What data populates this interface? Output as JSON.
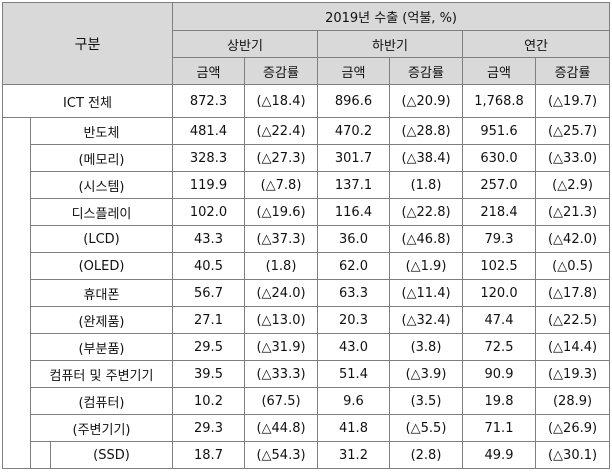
{
  "header": {
    "category": "구분",
    "main_title": "2019년 수출 (억불, %)",
    "periods": [
      "상반기",
      "하반기",
      "연간"
    ],
    "amount": "금액",
    "rate": "증감률"
  },
  "total": {
    "label": "ICT 전체",
    "h1_amt": "872.3",
    "h1_rate": "(△18.4)",
    "h2_amt": "896.6",
    "h2_rate": "(△20.9)",
    "yr_amt": "1,768.8",
    "yr_rate": "(△19.7)"
  },
  "rows": [
    {
      "label": "반도체",
      "h1_amt": "481.4",
      "h1_rate": "(△22.4)",
      "h2_amt": "470.2",
      "h2_rate": "(△28.8)",
      "yr_amt": "951.6",
      "yr_rate": "(△25.7)"
    },
    {
      "label": "(메모리)",
      "h1_amt": "328.3",
      "h1_rate": "(△27.3)",
      "h2_amt": "301.7",
      "h2_rate": "(△38.4)",
      "yr_amt": "630.0",
      "yr_rate": "(△33.0)"
    },
    {
      "label": "(시스템)",
      "h1_amt": "119.9",
      "h1_rate": "(△7.8)",
      "h2_amt": "137.1",
      "h2_rate": "(1.8)",
      "yr_amt": "257.0",
      "yr_rate": "(△2.9)"
    },
    {
      "label": "디스플레이",
      "h1_amt": "102.0",
      "h1_rate": "(△19.6)",
      "h2_amt": "116.4",
      "h2_rate": "(△22.8)",
      "yr_amt": "218.4",
      "yr_rate": "(△21.3)"
    },
    {
      "label": "(LCD)",
      "h1_amt": "43.3",
      "h1_rate": "(△37.3)",
      "h2_amt": "36.0",
      "h2_rate": "(△46.8)",
      "yr_amt": "79.3",
      "yr_rate": "(△42.0)"
    },
    {
      "label": "(OLED)",
      "h1_amt": "40.5",
      "h1_rate": "(1.8)",
      "h2_amt": "62.0",
      "h2_rate": "(△1.9)",
      "yr_amt": "102.5",
      "yr_rate": "(△0.5)"
    },
    {
      "label": "휴대폰",
      "h1_amt": "56.7",
      "h1_rate": "(△24.0)",
      "h2_amt": "63.3",
      "h2_rate": "(△11.4)",
      "yr_amt": "120.0",
      "yr_rate": "(△17.8)"
    },
    {
      "label": "(완제품)",
      "h1_amt": "27.1",
      "h1_rate": "(△13.0)",
      "h2_amt": "20.3",
      "h2_rate": "(△32.4)",
      "yr_amt": "47.4",
      "yr_rate": "(△22.5)"
    },
    {
      "label": "(부분품)",
      "h1_amt": "29.5",
      "h1_rate": "(△31.9)",
      "h2_amt": "43.0",
      "h2_rate": "(3.8)",
      "yr_amt": "72.5",
      "yr_rate": "(△14.4)"
    },
    {
      "label": "컴퓨터 및 주변기기",
      "h1_amt": "39.5",
      "h1_rate": "(△33.3)",
      "h2_amt": "51.4",
      "h2_rate": "(△3.9)",
      "yr_amt": "90.9",
      "yr_rate": "(△19.3)"
    },
    {
      "label": "(컴퓨터)",
      "h1_amt": "10.2",
      "h1_rate": "(67.5)",
      "h2_amt": "9.6",
      "h2_rate": "(3.5)",
      "yr_amt": "19.8",
      "yr_rate": "(28.9)"
    },
    {
      "label": "(주변기기)",
      "h1_amt": "29.3",
      "h1_rate": "(△44.8)",
      "h2_amt": "41.8",
      "h2_rate": "(△5.5)",
      "yr_amt": "71.1",
      "yr_rate": "(△26.9)"
    },
    {
      "label": "(SSD)",
      "h1_amt": "18.7",
      "h1_rate": "(△54.3)",
      "h2_amt": "31.2",
      "h2_rate": "(2.8)",
      "yr_amt": "49.9",
      "yr_rate": "(△30.1)"
    }
  ]
}
